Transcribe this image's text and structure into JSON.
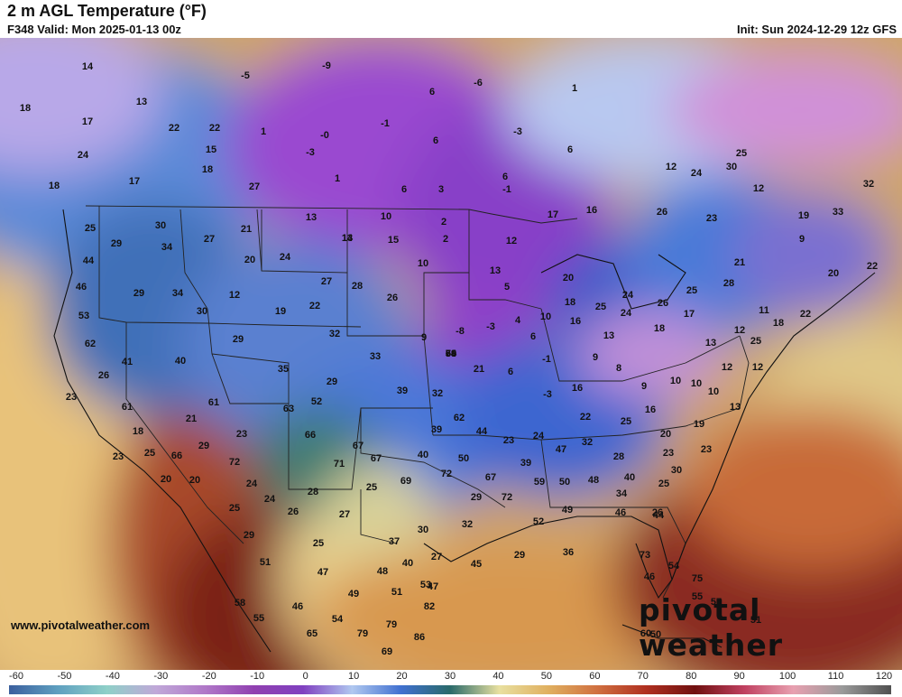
{
  "header": {
    "title": "2 m AGL Temperature (°F)",
    "valid": "F348 Valid: Mon 2025-01-13 00z",
    "init": "Init: Sun 2024-12-29 12z GFS"
  },
  "footer": {
    "source": "www.pivotalweather.com",
    "brand": "pivotal weather"
  },
  "colorbar": {
    "ticks": [
      "-60",
      "-50",
      "-40",
      "-30",
      "-20",
      "-10",
      "0",
      "10",
      "20",
      "30",
      "40",
      "50",
      "60",
      "70",
      "80",
      "90",
      "100",
      "110",
      "120"
    ],
    "colors": [
      "#3b5f9e",
      "#5fa0c0",
      "#8fd0c8",
      "#c0a8d8",
      "#b078c8",
      "#9040b0",
      "#8040c0",
      "#b0c8f0",
      "#4070d0",
      "#2a6a6a",
      "#e8e0a0",
      "#e0b060",
      "#d07040",
      "#b03020",
      "#701010",
      "#c04060",
      "#e8a0b0",
      "#9a9a9a",
      "#505050"
    ]
  },
  "map_values": [
    {
      "v": "14"
    },
    {
      "v": "18"
    },
    {
      "v": "17"
    },
    {
      "v": "13"
    },
    {
      "v": "22"
    },
    {
      "v": "22"
    },
    {
      "v": "15"
    },
    {
      "v": "24"
    },
    {
      "v": "18"
    },
    {
      "v": "17"
    },
    {
      "v": "18"
    },
    {
      "v": "27"
    },
    {
      "v": "-5"
    },
    {
      "v": "-9"
    },
    {
      "v": "1"
    },
    {
      "v": "-3"
    },
    {
      "v": "-0"
    },
    {
      "v": "1"
    },
    {
      "v": "6"
    },
    {
      "v": "3"
    },
    {
      "v": "6"
    },
    {
      "v": "-1"
    },
    {
      "v": "6"
    },
    {
      "v": "-3"
    },
    {
      "v": "6"
    },
    {
      "v": "-6"
    },
    {
      "v": "1"
    },
    {
      "v": "6"
    },
    {
      "v": "-1"
    },
    {
      "v": "13"
    },
    {
      "v": "30"
    },
    {
      "v": "25"
    },
    {
      "v": "29"
    },
    {
      "v": "34"
    },
    {
      "v": "27"
    },
    {
      "v": "21"
    },
    {
      "v": "20"
    },
    {
      "v": "24"
    },
    {
      "v": "13"
    },
    {
      "v": "14"
    },
    {
      "v": "10"
    },
    {
      "v": "15"
    },
    {
      "v": "2"
    },
    {
      "v": "2"
    },
    {
      "v": "10"
    },
    {
      "v": "12"
    },
    {
      "v": "17"
    },
    {
      "v": "16"
    },
    {
      "v": "26"
    },
    {
      "v": "23"
    },
    {
      "v": "12"
    },
    {
      "v": "30"
    },
    {
      "v": "25"
    },
    {
      "v": "24"
    },
    {
      "v": "12"
    },
    {
      "v": "19"
    },
    {
      "v": "33"
    },
    {
      "v": "32"
    },
    {
      "v": "44"
    },
    {
      "v": "46"
    },
    {
      "v": "29"
    },
    {
      "v": "34"
    },
    {
      "v": "12"
    },
    {
      "v": "30"
    },
    {
      "v": "27"
    },
    {
      "v": "28"
    },
    {
      "v": "26"
    },
    {
      "v": "22"
    },
    {
      "v": "19"
    },
    {
      "v": "13"
    },
    {
      "v": "5"
    },
    {
      "v": "20"
    },
    {
      "v": "18"
    },
    {
      "v": "25"
    },
    {
      "v": "24"
    },
    {
      "v": "24"
    },
    {
      "v": "26"
    },
    {
      "v": "25"
    },
    {
      "v": "28"
    },
    {
      "v": "21"
    },
    {
      "v": "9"
    },
    {
      "v": "20"
    },
    {
      "v": "22"
    },
    {
      "v": "53"
    },
    {
      "v": "62"
    },
    {
      "v": "41"
    },
    {
      "v": "40"
    },
    {
      "v": "29"
    },
    {
      "v": "35"
    },
    {
      "v": "32"
    },
    {
      "v": "29"
    },
    {
      "v": "33"
    },
    {
      "v": "9"
    },
    {
      "v": "-8"
    },
    {
      "v": "-3"
    },
    {
      "v": "4"
    },
    {
      "v": "6"
    },
    {
      "v": "10"
    },
    {
      "v": "16"
    },
    {
      "v": "13"
    },
    {
      "v": "18"
    },
    {
      "v": "17"
    },
    {
      "v": "13"
    },
    {
      "v": "12"
    },
    {
      "v": "11"
    },
    {
      "v": "18"
    },
    {
      "v": "22"
    },
    {
      "v": "25"
    },
    {
      "v": "26"
    },
    {
      "v": "23"
    },
    {
      "v": "61"
    },
    {
      "v": "61"
    },
    {
      "v": "63"
    },
    {
      "v": "52"
    },
    {
      "v": "39"
    },
    {
      "v": "32"
    },
    {
      "v": "21"
    },
    {
      "v": "6"
    },
    {
      "v": "-3"
    },
    {
      "v": "-1"
    },
    {
      "v": "16"
    },
    {
      "v": "9"
    },
    {
      "v": "8"
    },
    {
      "v": "9"
    },
    {
      "v": "10"
    },
    {
      "v": "10"
    },
    {
      "v": "10"
    },
    {
      "v": "12"
    },
    {
      "v": "12"
    },
    {
      "v": "18"
    },
    {
      "v": "21"
    },
    {
      "v": "23"
    },
    {
      "v": "66"
    },
    {
      "v": "62"
    },
    {
      "v": "39"
    },
    {
      "v": "44"
    },
    {
      "v": "23"
    },
    {
      "v": "24"
    },
    {
      "v": "22"
    },
    {
      "v": "25"
    },
    {
      "v": "16"
    },
    {
      "v": "20"
    },
    {
      "v": "19"
    },
    {
      "v": "13"
    },
    {
      "v": "23"
    },
    {
      "v": "25"
    },
    {
      "v": "29"
    },
    {
      "v": "66"
    },
    {
      "v": "72"
    },
    {
      "v": "67"
    },
    {
      "v": "71"
    },
    {
      "v": "67"
    },
    {
      "v": "40"
    },
    {
      "v": "50"
    },
    {
      "v": "39"
    },
    {
      "v": "47"
    },
    {
      "v": "32"
    },
    {
      "v": "28"
    },
    {
      "v": "23"
    },
    {
      "v": "23"
    },
    {
      "v": "20"
    },
    {
      "v": "20"
    },
    {
      "v": "24"
    },
    {
      "v": "24"
    },
    {
      "v": "28"
    },
    {
      "v": "25"
    },
    {
      "v": "69"
    },
    {
      "v": "72"
    },
    {
      "v": "67"
    },
    {
      "v": "59"
    },
    {
      "v": "50"
    },
    {
      "v": "48"
    },
    {
      "v": "40"
    },
    {
      "v": "34"
    },
    {
      "v": "30"
    },
    {
      "v": "25"
    },
    {
      "v": "26"
    },
    {
      "v": "25"
    },
    {
      "v": "26"
    },
    {
      "v": "27"
    },
    {
      "v": "30"
    },
    {
      "v": "32"
    },
    {
      "v": "29"
    },
    {
      "v": "72"
    },
    {
      "v": "52"
    },
    {
      "v": "49"
    },
    {
      "v": "46"
    },
    {
      "v": "44"
    },
    {
      "v": "29"
    },
    {
      "v": "25"
    },
    {
      "v": "37"
    },
    {
      "v": "27"
    },
    {
      "v": "29"
    },
    {
      "v": "36"
    },
    {
      "v": "73"
    },
    {
      "v": "54"
    },
    {
      "v": "51"
    },
    {
      "v": "47"
    },
    {
      "v": "48"
    },
    {
      "v": "40"
    },
    {
      "v": "45"
    },
    {
      "v": "46"
    },
    {
      "v": "75"
    },
    {
      "v": "55"
    },
    {
      "v": "49"
    },
    {
      "v": "51"
    },
    {
      "v": "53"
    },
    {
      "v": "47"
    },
    {
      "v": "58"
    },
    {
      "v": "82"
    },
    {
      "v": "57"
    },
    {
      "v": "46"
    },
    {
      "v": "55"
    },
    {
      "v": "54"
    },
    {
      "v": "79"
    },
    {
      "v": "51"
    },
    {
      "v": "65"
    },
    {
      "v": "79"
    },
    {
      "v": "86"
    },
    {
      "v": "60"
    },
    {
      "v": "50"
    },
    {
      "v": "69"
    },
    {
      "v": "70"
    },
    {
      "v": "59"
    },
    {
      "v": "54"
    },
    {
      "v": "64"
    },
    {
      "v": "69"
    },
    {
      "v": "53"
    }
  ]
}
